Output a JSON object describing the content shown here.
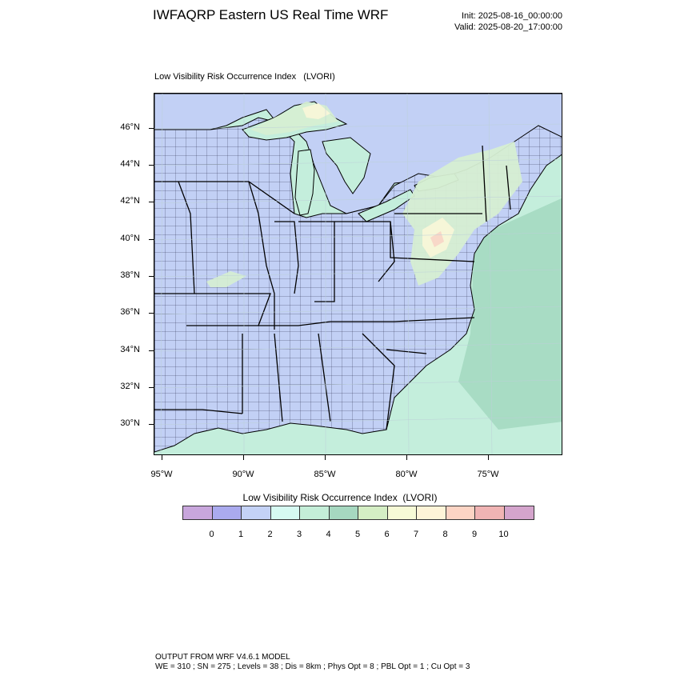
{
  "header": {
    "title": "IWFAQRP Eastern US Real Time WRF",
    "init": "Init: 2025-08-16_00:00:00",
    "valid": "Valid: 2025-08-20_17:00:00"
  },
  "panel": {
    "title": "Low Visibility Risk Occurrence Index   (LVORI)"
  },
  "map": {
    "latitude_labels": [
      "46°N",
      "44°N",
      "42°N",
      "40°N",
      "38°N",
      "36°N",
      "34°N",
      "32°N",
      "30°N"
    ],
    "longitude_labels": [
      "95°W",
      "90°W",
      "85°W",
      "80°W",
      "75°W"
    ],
    "colors": {
      "land_base": "#c2d0f5",
      "water_base": "#c4eedc",
      "deep_water": "#a8dcc4",
      "level_6": "#d6eed2",
      "level_7": "#f6f6d8",
      "level_9": "#f8d8c8",
      "county_lines": "#1a1a3a"
    }
  },
  "colorbar": {
    "title": "Low Visibility Risk Occurrence Index  (LVORI)",
    "colors": [
      "#c8a6dc",
      "#aaaaee",
      "#c4d2f6",
      "#d6faf2",
      "#c4eed8",
      "#a6d8c0",
      "#d4eec4",
      "#f6fad6",
      "#fef4d8",
      "#fcd4c4",
      "#f0b4b4",
      "#d4a4cc"
    ],
    "labels": [
      "0",
      "1",
      "2",
      "3",
      "4",
      "5",
      "6",
      "7",
      "8",
      "9",
      "10"
    ]
  },
  "footer": {
    "line1": "OUTPUT FROM WRF V4.6.1 MODEL",
    "line2": "WE = 310 ; SN = 275 ; Levels = 38 ; Dis = 8km ; Phys Opt = 8 ; PBL Opt = 1 ; Cu Opt = 3"
  }
}
